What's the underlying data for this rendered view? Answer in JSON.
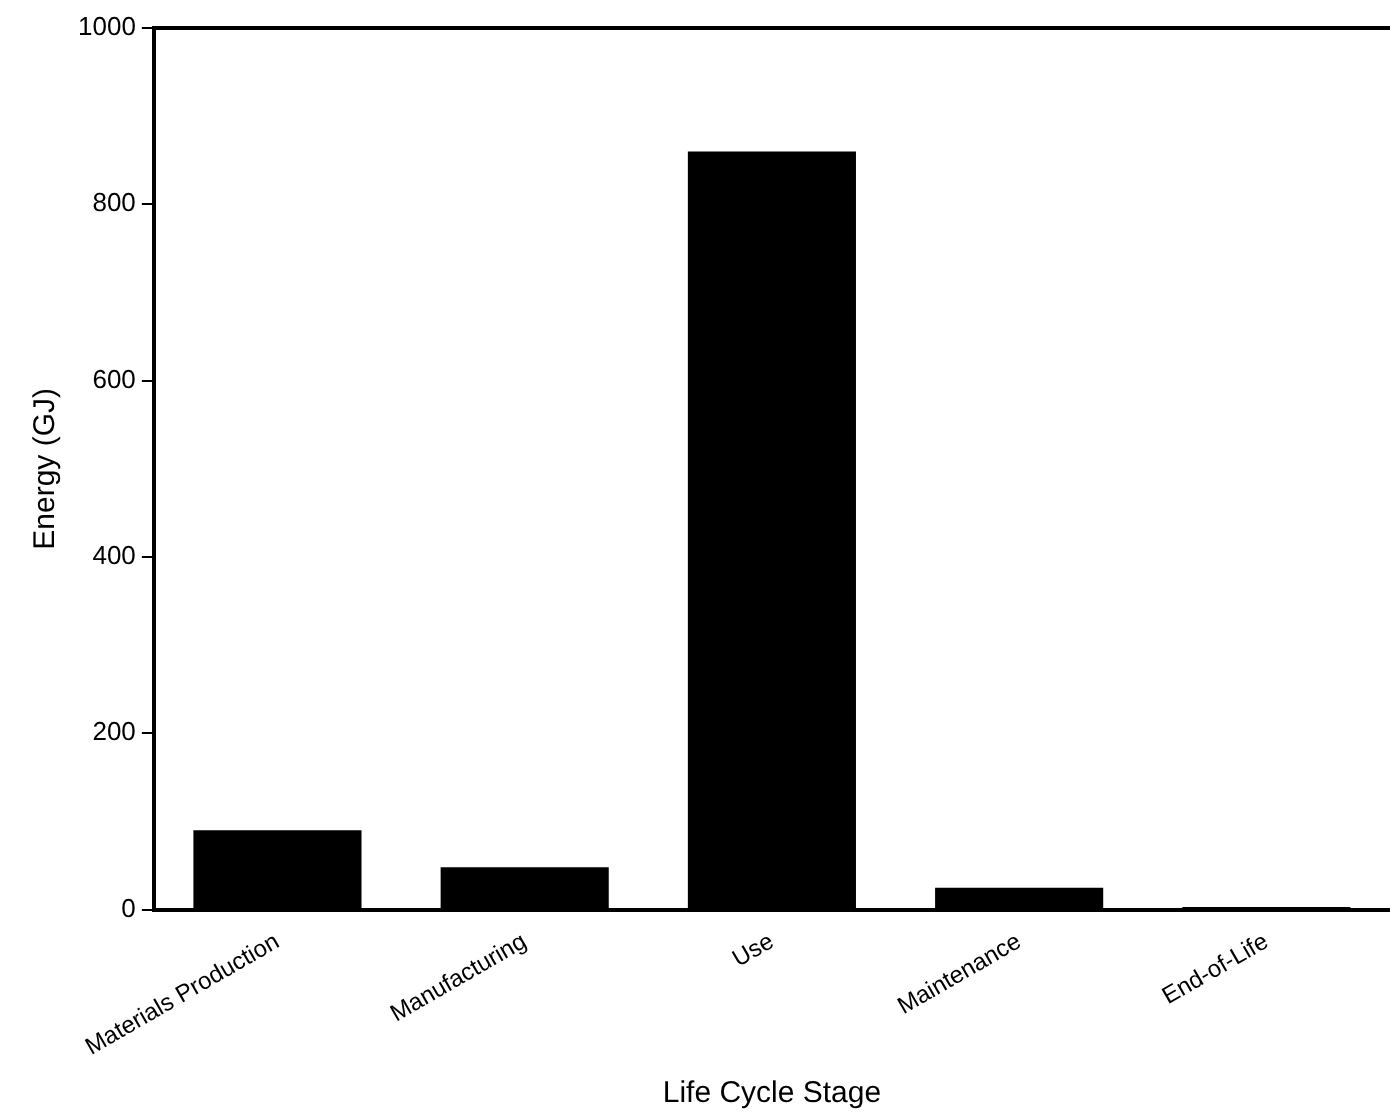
{
  "chart_data": {
    "type": "bar",
    "xlabel": "Life Cycle Stage",
    "ylabel": "Energy (GJ)",
    "categories": [
      "Materials Production",
      "Manufacturing",
      "Use",
      "Maintenance",
      "End-of-Life"
    ],
    "values": [
      90,
      48,
      860,
      25,
      3
    ],
    "color": "#000000",
    "ylim": [
      0,
      1000
    ],
    "yticks": [
      0,
      200,
      400,
      600,
      800,
      1000
    ],
    "grid": false,
    "legend": false
  }
}
